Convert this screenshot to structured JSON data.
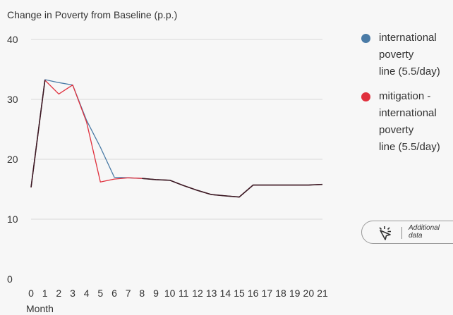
{
  "chart_data": {
    "type": "line",
    "title": "Change in Poverty from Baseline (p.p.)",
    "xlabel": "Month",
    "ylabel": "",
    "x": [
      0,
      1,
      2,
      3,
      4,
      5,
      6,
      7,
      8,
      9,
      10,
      11,
      12,
      13,
      14,
      15,
      16,
      17,
      18,
      19,
      20,
      21
    ],
    "xlim": [
      0,
      21
    ],
    "ylim": [
      0,
      40
    ],
    "yticks": [
      0,
      10,
      20,
      30,
      40
    ],
    "grid": true,
    "legend_position": "right",
    "series": [
      {
        "name": "international poverty line (5.5/day)",
        "color": "#4a7ba6",
        "values": [
          15.3,
          33.3,
          32.8,
          32.4,
          26.5,
          22.0,
          17.0,
          16.9,
          16.8,
          16.6,
          16.5,
          15.6,
          14.8,
          14.1,
          13.9,
          13.7,
          15.7,
          15.7,
          15.7,
          15.7,
          15.7,
          15.8
        ]
      },
      {
        "name": "mitigation - international poverty line (5.5/day)",
        "color": "#e0303d",
        "values": [
          15.3,
          33.2,
          30.9,
          32.4,
          26.2,
          16.2,
          16.7,
          16.9,
          16.8,
          16.6,
          16.5,
          15.6,
          14.8,
          14.1,
          13.9,
          13.7,
          15.7,
          15.7,
          15.7,
          15.7,
          15.7,
          15.8
        ]
      },
      {
        "name": "",
        "color": "#3b1a24",
        "values": [
          15.3,
          33.2,
          null,
          32.4,
          null,
          null,
          null,
          null,
          16.8,
          16.6,
          16.5,
          15.6,
          14.8,
          14.1,
          13.9,
          13.7,
          15.7,
          15.7,
          15.7,
          15.7,
          15.7,
          15.8
        ]
      }
    ]
  },
  "legend": {
    "items": [
      {
        "lines": [
          "international",
          "poverty",
          "line (5.5/day)"
        ],
        "color": "#4a7ba6"
      },
      {
        "lines": [
          "mitigation -",
          "international",
          "poverty",
          "line (5.5/day)"
        ],
        "color": "#e0303d"
      }
    ]
  },
  "additional_data": {
    "line1": "Additional",
    "line2": "data",
    "icon": "click-cursor-icon"
  }
}
